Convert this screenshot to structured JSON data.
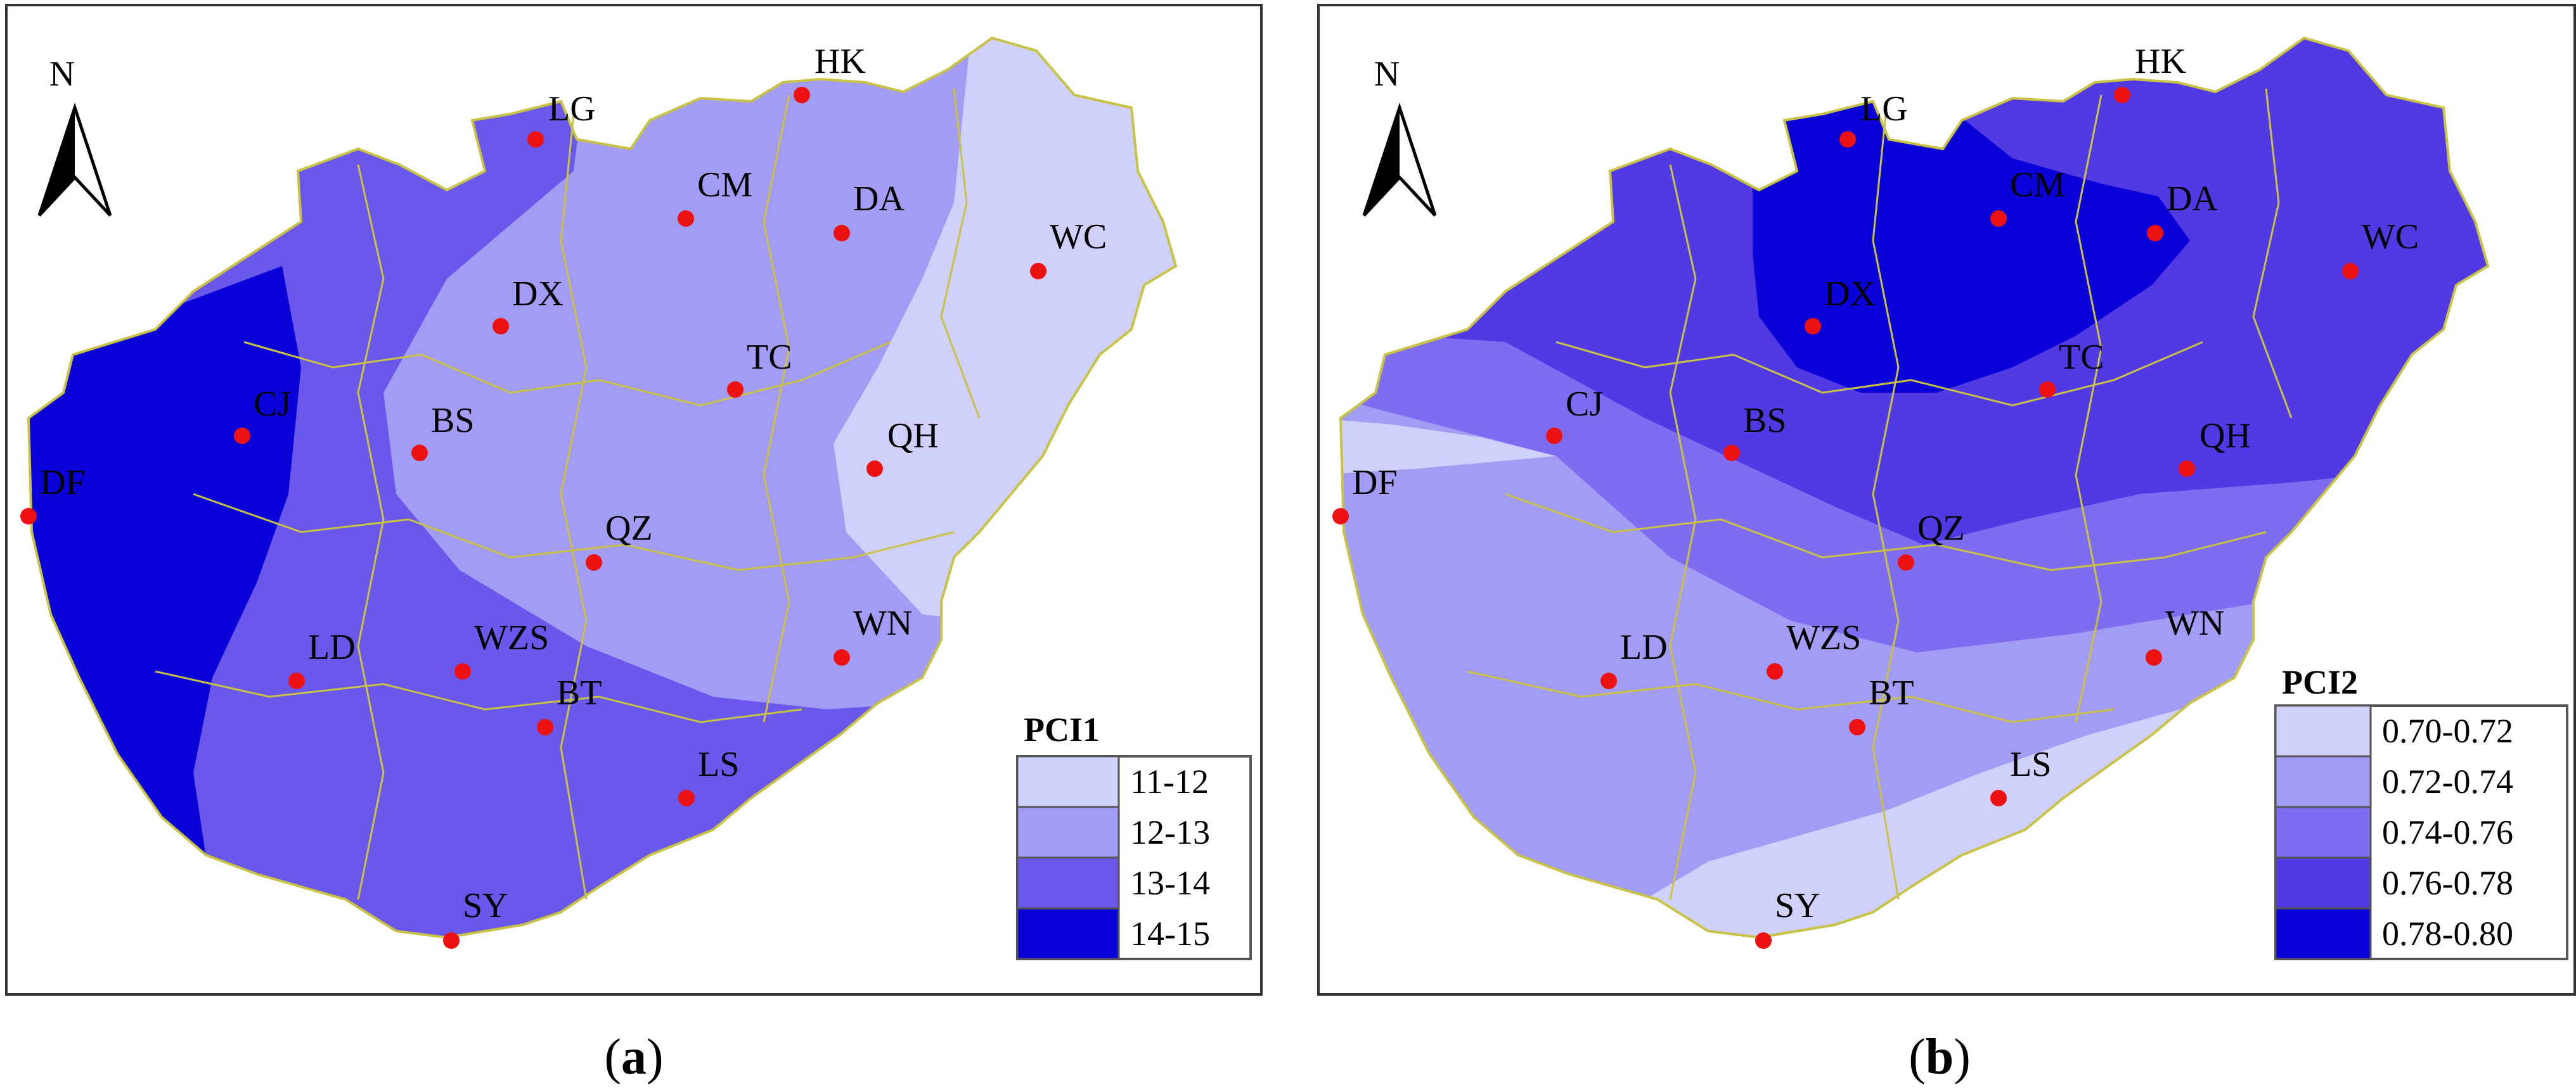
{
  "panels": [
    {
      "id": "a",
      "caption_letter": "a",
      "north_label": "N",
      "legend": {
        "title": "PCI1",
        "classes": [
          {
            "label": "11-12",
            "color": "#cfd0fb"
          },
          {
            "label": "12-13",
            "color": "#a29cf4"
          },
          {
            "label": "13-14",
            "color": "#6a57ec"
          },
          {
            "label": "14-15",
            "color": "#0a00d8"
          }
        ]
      },
      "stations": [
        {
          "code": "HK"
        },
        {
          "code": "LG"
        },
        {
          "code": "CM"
        },
        {
          "code": "DA"
        },
        {
          "code": "WC"
        },
        {
          "code": "DX"
        },
        {
          "code": "TC"
        },
        {
          "code": "CJ"
        },
        {
          "code": "BS"
        },
        {
          "code": "QH"
        },
        {
          "code": "DF"
        },
        {
          "code": "QZ"
        },
        {
          "code": "LD"
        },
        {
          "code": "WZS"
        },
        {
          "code": "WN"
        },
        {
          "code": "BT"
        },
        {
          "code": "LS"
        },
        {
          "code": "SY"
        }
      ]
    },
    {
      "id": "b",
      "caption_letter": "b",
      "north_label": "N",
      "legend": {
        "title": "PCI2",
        "classes": [
          {
            "label": "0.70-0.72",
            "color": "#cfd0fb"
          },
          {
            "label": "0.72-0.74",
            "color": "#a29cf4"
          },
          {
            "label": "0.74-0.76",
            "color": "#7f6df1"
          },
          {
            "label": "0.76-0.78",
            "color": "#5139e3"
          },
          {
            "label": "0.78-0.80",
            "color": "#0a00d8"
          }
        ]
      },
      "stations": [
        {
          "code": "HK"
        },
        {
          "code": "LG"
        },
        {
          "code": "CM"
        },
        {
          "code": "DA"
        },
        {
          "code": "WC"
        },
        {
          "code": "DX"
        },
        {
          "code": "TC"
        },
        {
          "code": "CJ"
        },
        {
          "code": "BS"
        },
        {
          "code": "QH"
        },
        {
          "code": "DF"
        },
        {
          "code": "QZ"
        },
        {
          "code": "LD"
        },
        {
          "code": "WZS"
        },
        {
          "code": "WN"
        },
        {
          "code": "BT"
        },
        {
          "code": "LS"
        },
        {
          "code": "SY"
        }
      ]
    }
  ],
  "colors": {
    "station_dot": "#ee1111",
    "county_boundary": "#c8c245",
    "frame": "#333333"
  }
}
